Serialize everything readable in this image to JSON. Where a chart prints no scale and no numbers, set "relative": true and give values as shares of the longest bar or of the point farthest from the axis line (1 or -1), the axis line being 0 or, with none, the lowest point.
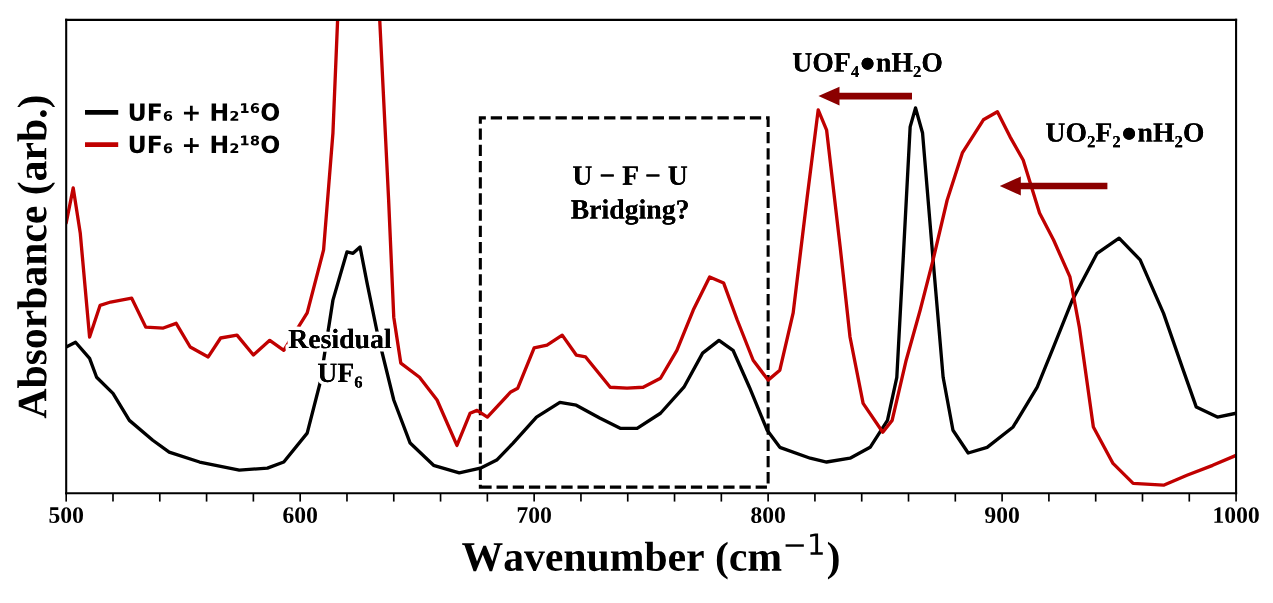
{
  "chart_data": {
    "type": "line",
    "relative": true,
    "xlabel": "Wavenumber (cm$^{−1}$)",
    "ylabel": "Absorbance (arb.)",
    "xlim": [
      500,
      1000
    ],
    "xticks": [
      500,
      {
        "value": 520,
        "label": null
      },
      {
        "value": 540,
        "label": null
      },
      {
        "value": 560,
        "label": null
      },
      {
        "value": 580,
        "label": null
      },
      600,
      {
        "value": 620,
        "label": null
      },
      {
        "value": 640,
        "label": null
      },
      {
        "value": 660,
        "label": null
      },
      {
        "value": 680,
        "label": null
      },
      700,
      {
        "value": 720,
        "label": null
      },
      {
        "value": 740,
        "label": null
      },
      {
        "value": 760,
        "label": null
      },
      {
        "value": 780,
        "label": null
      },
      800,
      {
        "value": 820,
        "label": null
      },
      {
        "value": 840,
        "label": null
      },
      {
        "value": 860,
        "label": null
      },
      {
        "value": 880,
        "label": null
      },
      900,
      {
        "value": 920,
        "label": null
      },
      {
        "value": 940,
        "label": null
      },
      {
        "value": 960,
        "label": null
      },
      {
        "value": 980,
        "label": null
      },
      1000
    ],
    "tick_labels": "x",
    "grid": false,
    "legend": "top left",
    "marker": "none",
    "line_style": "solid",
    "series": [
      {
        "name": "UF₆ + H₂¹⁶O",
        "color": "#000000",
        "x": [
          500,
          504,
          510,
          513,
          520,
          527,
          537,
          544,
          557,
          574,
          586,
          593,
          603,
          608.5,
          614,
          620,
          622.6,
          625.6,
          628.6,
          633,
          640,
          647,
          657,
          668,
          677,
          684,
          691,
          701,
          711,
          718,
          728,
          737,
          744,
          754,
          764,
          772,
          779,
          785,
          792,
          799.6,
          805,
          818,
          825,
          835,
          843.6,
          851,
          855,
          857.7,
          860.7,
          863,
          866,
          870.5,
          874.8,
          879,
          885.5,
          893.6,
          904.7,
          915,
          922,
          930,
          940.6,
          950,
          959,
          969,
          977,
          983,
          992,
          1000
        ],
        "values": [
          0.309,
          0.319,
          0.285,
          0.245,
          0.211,
          0.154,
          0.112,
          0.087,
          0.066,
          0.049,
          0.053,
          0.066,
          0.127,
          0.233,
          0.408,
          0.51,
          0.507,
          0.52,
          0.444,
          0.338,
          0.197,
          0.106,
          0.059,
          0.043,
          0.053,
          0.07,
          0.106,
          0.161,
          0.192,
          0.186,
          0.159,
          0.137,
          0.137,
          0.169,
          0.224,
          0.296,
          0.323,
          0.302,
          0.224,
          0.133,
          0.097,
          0.074,
          0.066,
          0.074,
          0.097,
          0.154,
          0.245,
          0.493,
          0.774,
          0.814,
          0.761,
          0.493,
          0.245,
          0.133,
          0.085,
          0.097,
          0.14,
          0.224,
          0.309,
          0.408,
          0.507,
          0.539,
          0.493,
          0.38,
          0.266,
          0.182,
          0.161,
          0.169
        ]
      },
      {
        "name": "UF₆ + H₂¹⁸O",
        "color": "#c00000",
        "x": [
          500,
          503,
          506,
          510,
          514.5,
          519,
          528,
          534,
          541.5,
          547,
          553,
          560.7,
          566,
          573,
          580,
          587,
          593,
          603,
          610,
          614,
          616,
          625,
          634,
          637.8,
          640,
          643,
          651,
          658.5,
          667,
          672.6,
          675.6,
          680,
          690,
          693,
          700,
          705.5,
          712,
          718,
          722,
          732.5,
          739.7,
          746.6,
          754,
          761,
          768,
          775,
          781,
          786.8,
          793.6,
          800,
          805,
          810.7,
          816.7,
          821.4,
          825,
          830.8,
          835,
          840.6,
          849,
          853,
          859,
          865,
          870.5,
          876.5,
          883,
          892,
          898,
          903.4,
          909,
          916,
          922,
          929,
          933,
          939,
          947.4,
          956,
          969,
          979,
          990,
          1000
        ],
        "values": [
          0.571,
          0.645,
          0.55,
          0.33,
          0.397,
          0.404,
          0.412,
          0.351,
          0.349,
          0.359,
          0.309,
          0.288,
          0.328,
          0.334,
          0.292,
          0.323,
          0.302,
          0.381,
          0.514,
          0.761,
          1.0,
          null,
          1.0,
          0.62,
          0.372,
          0.275,
          0.245,
          0.197,
          0.101,
          0.169,
          0.175,
          0.161,
          0.214,
          0.222,
          0.307,
          0.313,
          0.334,
          0.292,
          0.288,
          0.224,
          0.222,
          0.224,
          0.243,
          0.302,
          0.387,
          0.457,
          0.444,
          0.366,
          0.281,
          0.239,
          0.26,
          0.381,
          0.626,
          0.81,
          0.767,
          0.52,
          0.33,
          0.19,
          0.129,
          0.154,
          0.281,
          0.387,
          0.493,
          0.619,
          0.719,
          0.789,
          0.806,
          0.753,
          0.704,
          0.592,
          0.535,
          0.457,
          0.351,
          0.14,
          0.063,
          0.021,
          0.017,
          0.038,
          0.059,
          0.08
        ]
      }
    ],
    "annotations": [
      "Residual\nUF₆",
      "U − F − U\nBridging?",
      "UOF₄●nH₂O",
      "UO₂F₂●nH₂O"
    ]
  }
}
